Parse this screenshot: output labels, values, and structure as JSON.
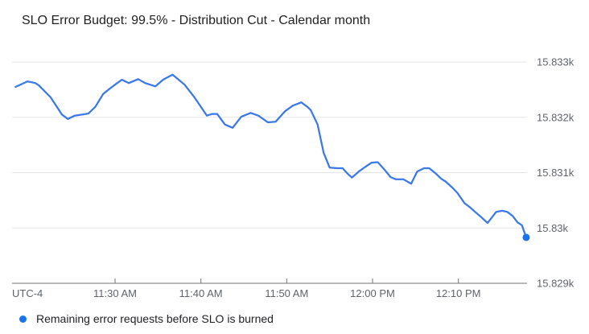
{
  "title": "SLO Error Budget: 99.5% - Distribution Cut - Calendar month",
  "colors": {
    "line": "#3b78e7",
    "end_dot": "#1a73e8",
    "legend_dot": "#1a73e8",
    "gridline": "#e6e6e6",
    "axis_line": "#757575",
    "tick_label": "#5f6368",
    "title_text": "#212121",
    "legend_text": "#202124",
    "background": "#ffffff"
  },
  "legend": {
    "items": [
      {
        "label": "Remaining error requests before SLO is burned",
        "color": "#1a73e8"
      }
    ]
  },
  "chart_data": {
    "type": "line",
    "title": "SLO Error Budget: 99.5% - Distribution Cut - Calendar month",
    "xlabel": "",
    "ylabel": "",
    "grid": true,
    "legend_position": "bottom-left",
    "x_axis": {
      "timezone_label": "UTC-4",
      "units": "minutes after 11:00 AM",
      "range": [
        18,
        78
      ],
      "ticks": [
        {
          "t": 30,
          "label": "11:30 AM"
        },
        {
          "t": 40,
          "label": "11:40 AM"
        },
        {
          "t": 50,
          "label": "11:50 AM"
        },
        {
          "t": 60,
          "label": "12:00 PM"
        },
        {
          "t": 70,
          "label": "12:10 PM"
        }
      ]
    },
    "y_axis": {
      "side": "right",
      "range": [
        15829,
        15833.175
      ],
      "ticks": [
        {
          "v": 15833,
          "label": "15.833k"
        },
        {
          "v": 15832,
          "label": "15.832k"
        },
        {
          "v": 15831,
          "label": "15.831k"
        },
        {
          "v": 15830,
          "label": "15.83k"
        },
        {
          "v": 15829,
          "label": "15.829k"
        }
      ]
    },
    "series": [
      {
        "name": "Remaining error requests before SLO is burned",
        "color": "#3b78e7",
        "end_dot": true,
        "end_dot_color": "#1a73e8",
        "points": [
          [
            18.4,
            15832.55
          ],
          [
            19.8,
            15832.65
          ],
          [
            20.7,
            15832.62
          ],
          [
            21.1,
            15832.58
          ],
          [
            22.5,
            15832.36
          ],
          [
            23.8,
            15832.05
          ],
          [
            24.5,
            15831.97
          ],
          [
            25.3,
            15832.03
          ],
          [
            26.2,
            15832.05
          ],
          [
            26.9,
            15832.07
          ],
          [
            27.7,
            15832.19
          ],
          [
            28.6,
            15832.42
          ],
          [
            29.4,
            15832.52
          ],
          [
            30.0,
            15832.59
          ],
          [
            30.8,
            15832.68
          ],
          [
            31.6,
            15832.62
          ],
          [
            32.7,
            15832.69
          ],
          [
            33.5,
            15832.62
          ],
          [
            34.7,
            15832.56
          ],
          [
            35.6,
            15832.68
          ],
          [
            36.7,
            15832.77
          ],
          [
            38.1,
            15832.59
          ],
          [
            39.3,
            15832.35
          ],
          [
            40.7,
            15832.03
          ],
          [
            41.3,
            15832.06
          ],
          [
            41.9,
            15832.06
          ],
          [
            42.8,
            15831.87
          ],
          [
            43.7,
            15831.81
          ],
          [
            44.7,
            15832.01
          ],
          [
            45.8,
            15832.08
          ],
          [
            46.7,
            15832.03
          ],
          [
            47.8,
            15831.91
          ],
          [
            48.7,
            15831.92
          ],
          [
            49.8,
            15832.11
          ],
          [
            50.7,
            15832.21
          ],
          [
            51.7,
            15832.27
          ],
          [
            52.4,
            15832.19
          ],
          [
            52.8,
            15832.13
          ],
          [
            53.6,
            15831.87
          ],
          [
            54.3,
            15831.36
          ],
          [
            55.0,
            15831.09
          ],
          [
            55.9,
            15831.08
          ],
          [
            56.5,
            15831.08
          ],
          [
            57.1,
            15830.98
          ],
          [
            57.6,
            15830.91
          ],
          [
            58.4,
            15831.02
          ],
          [
            59.2,
            15831.11
          ],
          [
            59.9,
            15831.18
          ],
          [
            60.6,
            15831.19
          ],
          [
            61.3,
            15831.07
          ],
          [
            62.1,
            15830.92
          ],
          [
            62.7,
            15830.88
          ],
          [
            63.6,
            15830.88
          ],
          [
            64.5,
            15830.8
          ],
          [
            65.2,
            15831.02
          ],
          [
            66.0,
            15831.08
          ],
          [
            66.6,
            15831.08
          ],
          [
            67.4,
            15830.98
          ],
          [
            68.0,
            15830.89
          ],
          [
            68.5,
            15830.84
          ],
          [
            69.3,
            15830.73
          ],
          [
            69.9,
            15830.63
          ],
          [
            70.7,
            15830.45
          ],
          [
            71.3,
            15830.38
          ],
          [
            72.1,
            15830.27
          ],
          [
            72.7,
            15830.19
          ],
          [
            73.4,
            15830.09
          ],
          [
            73.9,
            15830.19
          ],
          [
            74.4,
            15830.29
          ],
          [
            75.1,
            15830.31
          ],
          [
            75.7,
            15830.29
          ],
          [
            76.3,
            15830.22
          ],
          [
            76.9,
            15830.1
          ],
          [
            77.4,
            15830.05
          ],
          [
            77.9,
            15829.83
          ]
        ]
      }
    ]
  }
}
